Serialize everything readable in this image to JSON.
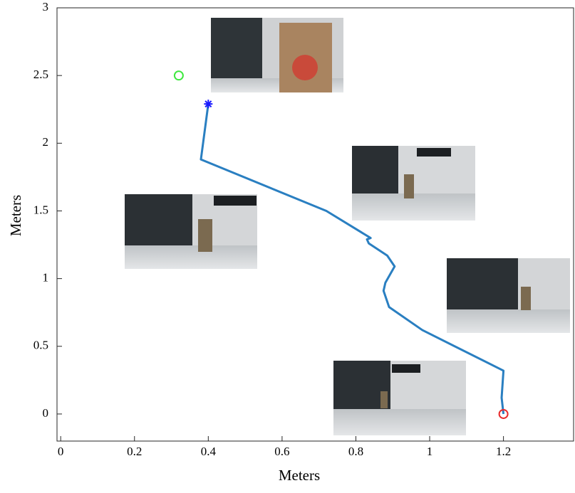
{
  "chart_data": {
    "type": "line",
    "xlabel": "Meters",
    "ylabel": "Meters",
    "xlim": [
      -0.01,
      1.39
    ],
    "ylim": [
      -0.2,
      3
    ],
    "xticks": [
      0,
      0.2,
      0.4,
      0.6,
      0.8,
      1,
      1.2
    ],
    "yticks": [
      0,
      0.5,
      1,
      1.5,
      2,
      2.5,
      3
    ],
    "x": [
      1.2,
      1.195,
      1.2,
      0.98,
      0.89,
      0.875,
      0.88,
      0.905,
      0.885,
      0.835,
      0.83,
      0.84,
      0.72,
      0.38,
      0.4
    ],
    "series": [
      {
        "color": "#2a7fc1",
        "values": [
          0,
          0.12,
          0.32,
          0.62,
          0.79,
          0.91,
          0.97,
          1.09,
          1.17,
          1.26,
          1.29,
          1.3,
          1.5,
          1.88,
          2.29
        ]
      }
    ],
    "markers": [
      {
        "x": 1.2,
        "y": 0,
        "color": "#e8292b",
        "shape": "circle"
      },
      {
        "x": 0.4,
        "y": 2.29,
        "color": "#1a1aff",
        "shape": "star"
      },
      {
        "x": 0.32,
        "y": 2.5,
        "color": "#3ee83e",
        "shape": "circle"
      }
    ]
  }
}
